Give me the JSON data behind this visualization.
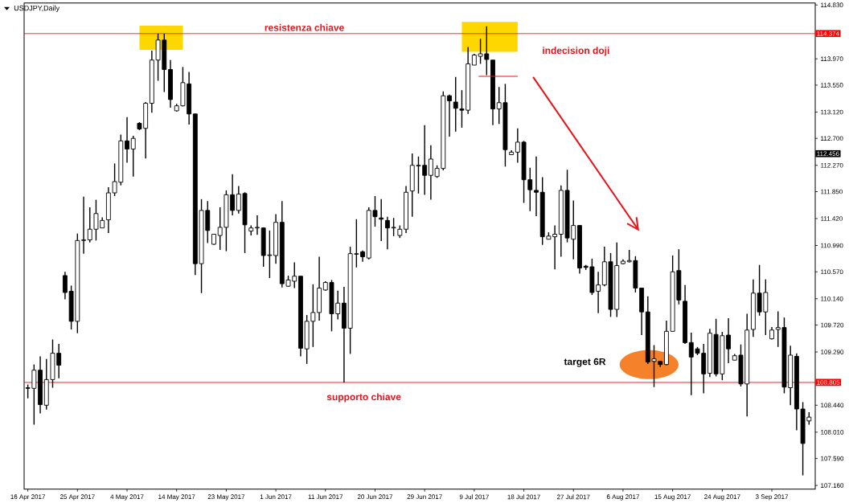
{
  "chart_data": {
    "type": "candlestick",
    "title": "USDJPY,Daily",
    "categories": [
      "16 Apr 2017",
      null,
      null,
      null,
      null,
      null,
      null,
      null,
      "25 Apr 2017",
      null,
      null,
      null,
      null,
      null,
      null,
      null,
      "4 May 2017",
      null,
      null,
      null,
      null,
      null,
      null,
      null,
      "14 May 2017",
      null,
      null,
      null,
      null,
      null,
      null,
      null,
      "23 May 2017",
      null,
      null,
      null,
      null,
      null,
      null,
      null,
      "1 Jun 2017",
      null,
      null,
      null,
      null,
      null,
      null,
      null,
      "11 Jun 2017",
      null,
      null,
      null,
      null,
      null,
      null,
      null,
      "20 Jun 2017",
      null,
      null,
      null,
      null,
      null,
      null,
      null,
      "29 Jun 2017",
      null,
      null,
      null,
      null,
      null,
      null,
      null,
      "9 Jul 2017",
      null,
      null,
      null,
      null,
      null,
      null,
      null,
      "18 Jul 2017",
      null,
      null,
      null,
      null,
      null,
      null,
      null,
      "27 Jul 2017",
      null,
      null,
      null,
      null,
      null,
      null,
      null,
      "6 Aug 2017",
      null,
      null,
      null,
      null,
      null,
      null,
      null,
      "15 Aug 2017",
      null,
      null,
      null,
      null,
      null,
      null,
      null,
      "24 Aug 2017",
      null,
      null,
      null,
      null,
      null,
      null,
      null,
      "3 Sep 2017",
      null,
      null,
      null,
      null,
      null,
      null
    ],
    "ohlc": [
      [
        108.72,
        108.77,
        108.55,
        108.71
      ],
      [
        108.71,
        109.09,
        108.13,
        109.0
      ],
      [
        109.0,
        109.22,
        108.31,
        108.45
      ],
      [
        108.44,
        109.18,
        108.37,
        108.85
      ],
      [
        108.85,
        109.49,
        108.72,
        109.27
      ],
      [
        109.27,
        109.42,
        108.87,
        109.08
      ],
      [
        110.51,
        110.57,
        110.13,
        110.24
      ],
      [
        110.26,
        110.35,
        109.65,
        109.78
      ],
      [
        109.78,
        111.18,
        109.59,
        111.07
      ],
      [
        111.07,
        111.77,
        110.86,
        111.08
      ],
      [
        111.08,
        111.6,
        111.04,
        111.25
      ],
      [
        111.25,
        111.72,
        111.07,
        111.5
      ],
      [
        111.27,
        111.44,
        111.27,
        111.39
      ],
      [
        111.4,
        111.92,
        111.19,
        111.83
      ],
      [
        111.83,
        112.3,
        111.78,
        112.01
      ],
      [
        112.0,
        112.76,
        111.95,
        112.66
      ],
      [
        112.66,
        113.04,
        112.31,
        112.53
      ],
      [
        112.53,
        112.74,
        112.09,
        112.7
      ],
      [
        112.94,
        112.96,
        112.83,
        112.85
      ],
      [
        112.86,
        113.28,
        112.38,
        113.26
      ],
      [
        113.26,
        114.1,
        113.11,
        113.95
      ],
      [
        113.95,
        114.37,
        113.62,
        114.27
      ],
      [
        114.27,
        114.37,
        113.44,
        113.8
      ],
      [
        113.8,
        113.95,
        113.19,
        113.32
      ],
      [
        113.14,
        113.25,
        113.13,
        113.22
      ],
      [
        113.22,
        113.84,
        113.21,
        113.59
      ],
      [
        113.57,
        113.76,
        112.92,
        113.09
      ],
      [
        113.09,
        113.09,
        110.52,
        110.7
      ],
      [
        110.7,
        111.73,
        110.23,
        111.55
      ],
      [
        111.55,
        111.7,
        111.03,
        111.23
      ],
      [
        111.01,
        111.17,
        111.0,
        111.17
      ],
      [
        111.15,
        111.6,
        110.92,
        111.28
      ],
      [
        111.28,
        111.87,
        110.9,
        111.8
      ],
      [
        111.8,
        112.13,
        111.47,
        111.55
      ],
      [
        111.55,
        111.94,
        111.5,
        111.81
      ],
      [
        111.82,
        111.84,
        110.87,
        111.32
      ],
      [
        111.22,
        111.31,
        111.15,
        111.27
      ],
      [
        111.27,
        111.47,
        111.16,
        111.28
      ],
      [
        111.27,
        111.28,
        110.65,
        110.83
      ],
      [
        110.83,
        111.23,
        110.47,
        110.84
      ],
      [
        110.83,
        111.49,
        110.7,
        111.36
      ],
      [
        111.36,
        111.7,
        110.32,
        110.38
      ],
      [
        110.34,
        110.51,
        110.33,
        110.44
      ],
      [
        110.42,
        110.72,
        110.31,
        110.5
      ],
      [
        110.5,
        110.5,
        109.22,
        109.35
      ],
      [
        109.34,
        109.88,
        109.1,
        109.78
      ],
      [
        109.78,
        110.37,
        109.37,
        109.92
      ],
      [
        109.92,
        110.81,
        109.79,
        110.31
      ],
      [
        110.28,
        110.42,
        110.27,
        110.4
      ],
      [
        110.4,
        110.44,
        109.62,
        109.9
      ],
      [
        109.9,
        110.27,
        109.81,
        110.07
      ],
      [
        110.07,
        110.33,
        108.805,
        109.67
      ],
      [
        109.67,
        110.97,
        109.26,
        110.86
      ],
      [
        110.85,
        111.41,
        110.64,
        110.86
      ],
      [
        110.89,
        110.91,
        110.73,
        110.81
      ],
      [
        110.79,
        111.6,
        110.77,
        111.55
      ],
      [
        111.55,
        111.78,
        111.29,
        111.45
      ],
      [
        111.43,
        111.73,
        111.06,
        111.41
      ],
      [
        111.39,
        111.45,
        110.93,
        111.27
      ],
      [
        111.27,
        111.43,
        111.14,
        111.28
      ],
      [
        111.15,
        111.31,
        111.11,
        111.25
      ],
      [
        111.25,
        111.94,
        111.19,
        111.84
      ],
      [
        111.86,
        112.46,
        111.45,
        112.27
      ],
      [
        112.26,
        112.41,
        111.82,
        112.27
      ],
      [
        112.27,
        112.91,
        111.8,
        112.11
      ],
      [
        112.11,
        112.59,
        111.72,
        112.37
      ],
      [
        112.09,
        112.27,
        112.07,
        112.22
      ],
      [
        112.22,
        113.45,
        112.19,
        113.38
      ],
      [
        113.38,
        113.4,
        112.73,
        113.3
      ],
      [
        113.28,
        113.68,
        112.81,
        113.18
      ],
      [
        113.17,
        113.47,
        112.87,
        113.15
      ],
      [
        113.15,
        114.16,
        113.09,
        113.89
      ],
      [
        113.87,
        114.05,
        113.87,
        114.03
      ],
      [
        114.01,
        114.29,
        113.89,
        114.05
      ],
      [
        114.05,
        114.49,
        113.71,
        113.96
      ],
      [
        113.95,
        113.95,
        112.91,
        113.17
      ],
      [
        113.17,
        113.52,
        112.93,
        113.27
      ],
      [
        113.27,
        113.57,
        112.25,
        112.52
      ],
      [
        112.44,
        112.51,
        112.44,
        112.48
      ],
      [
        112.48,
        112.86,
        112.31,
        112.64
      ],
      [
        112.64,
        112.66,
        111.67,
        112.04
      ],
      [
        112.04,
        112.23,
        111.54,
        111.88
      ],
      [
        111.87,
        112.41,
        111.46,
        111.84
      ],
      [
        111.84,
        112.08,
        111.0,
        111.13
      ],
      [
        111.09,
        111.2,
        111.09,
        111.14
      ],
      [
        111.13,
        111.31,
        110.61,
        111.17
      ],
      [
        111.17,
        111.95,
        110.81,
        111.87
      ],
      [
        111.87,
        112.2,
        111.04,
        111.11
      ],
      [
        111.09,
        111.71,
        110.77,
        111.31
      ],
      [
        111.31,
        111.31,
        110.54,
        110.63
      ],
      [
        110.66,
        110.68,
        110.6,
        110.64
      ],
      [
        110.65,
        110.78,
        110.2,
        110.24
      ],
      [
        110.26,
        110.57,
        109.91,
        110.36
      ],
      [
        110.36,
        110.97,
        110.34,
        110.73
      ],
      [
        110.73,
        110.87,
        109.85,
        109.97
      ],
      [
        109.97,
        111.04,
        109.85,
        110.67
      ],
      [
        110.7,
        110.77,
        110.69,
        110.74
      ],
      [
        110.73,
        110.92,
        110.72,
        110.75
      ],
      [
        110.75,
        110.82,
        110.24,
        110.31
      ],
      [
        110.31,
        110.31,
        109.56,
        109.93
      ],
      [
        109.93,
        110.18,
        109.1,
        109.13
      ],
      [
        109.14,
        109.4,
        108.73,
        109.18
      ],
      [
        109.14,
        109.15,
        109.05,
        109.09
      ],
      [
        109.09,
        109.79,
        109.08,
        109.62
      ],
      [
        109.62,
        110.83,
        109.62,
        110.57
      ],
      [
        110.59,
        110.93,
        110.05,
        110.12
      ],
      [
        110.1,
        110.36,
        109.42,
        109.44
      ],
      [
        109.44,
        109.6,
        108.6,
        109.21
      ],
      [
        109.34,
        109.37,
        109.24,
        109.27
      ],
      [
        109.27,
        109.42,
        108.63,
        108.94
      ],
      [
        108.95,
        109.66,
        108.89,
        109.59
      ],
      [
        109.57,
        109.82,
        108.9,
        108.94
      ],
      [
        108.94,
        109.61,
        108.84,
        109.55
      ],
      [
        109.56,
        109.83,
        109.11,
        109.34
      ],
      [
        109.16,
        109.26,
        109.16,
        109.23
      ],
      [
        109.24,
        109.41,
        108.74,
        108.78
      ],
      [
        108.78,
        109.9,
        108.26,
        109.64
      ],
      [
        109.65,
        110.45,
        109.53,
        110.23
      ],
      [
        110.23,
        110.68,
        109.87,
        109.93
      ],
      [
        109.93,
        110.45,
        109.56,
        110.24
      ],
      [
        109.5,
        109.69,
        109.49,
        109.64
      ],
      [
        109.65,
        109.94,
        109.37,
        109.68
      ],
      [
        109.68,
        109.84,
        108.63,
        108.73
      ],
      [
        108.72,
        109.39,
        108.44,
        109.24
      ],
      [
        109.22,
        109.27,
        108.04,
        108.38
      ],
      [
        108.38,
        108.49,
        107.32,
        107.83
      ],
      [
        108.19,
        108.33,
        108.13,
        108.25
      ]
    ],
    "ylim": [
      107.1,
      114.86
    ],
    "yticks": [
      {
        "value": 107.16,
        "label": "107.160"
      },
      {
        "value": 107.59,
        "label": "107.590"
      },
      {
        "value": 108.01,
        "label": "108.010"
      },
      {
        "value": 108.44,
        "label": "108.440"
      },
      {
        "value": 109.29,
        "label": "109.290"
      },
      {
        "value": 109.72,
        "label": "109.720"
      },
      {
        "value": 110.14,
        "label": "110.140"
      },
      {
        "value": 110.57,
        "label": "110.570"
      },
      {
        "value": 110.99,
        "label": "110.990"
      },
      {
        "value": 111.42,
        "label": "111.420"
      },
      {
        "value": 111.85,
        "label": "111.850"
      },
      {
        "value": 112.27,
        "label": "112.270"
      },
      {
        "value": 112.7,
        "label": "112.700"
      },
      {
        "value": 113.12,
        "label": "113.120"
      },
      {
        "value": 113.55,
        "label": "113.550"
      },
      {
        "value": 113.97,
        "label": "113.970"
      },
      {
        "value": 114.83,
        "label": "114.830"
      }
    ],
    "ref_lines": [
      {
        "axis": "y",
        "value": 114.374,
        "label": "114.374",
        "color": "#ff0000"
      },
      {
        "axis": "y",
        "value": 108.805,
        "label": "108.805",
        "color": "#ff0000"
      }
    ],
    "annotations": [
      "resistenza chiave",
      "indecision doji",
      "supporto chiave",
      "target 6R",
      "112.456"
    ]
  }
}
